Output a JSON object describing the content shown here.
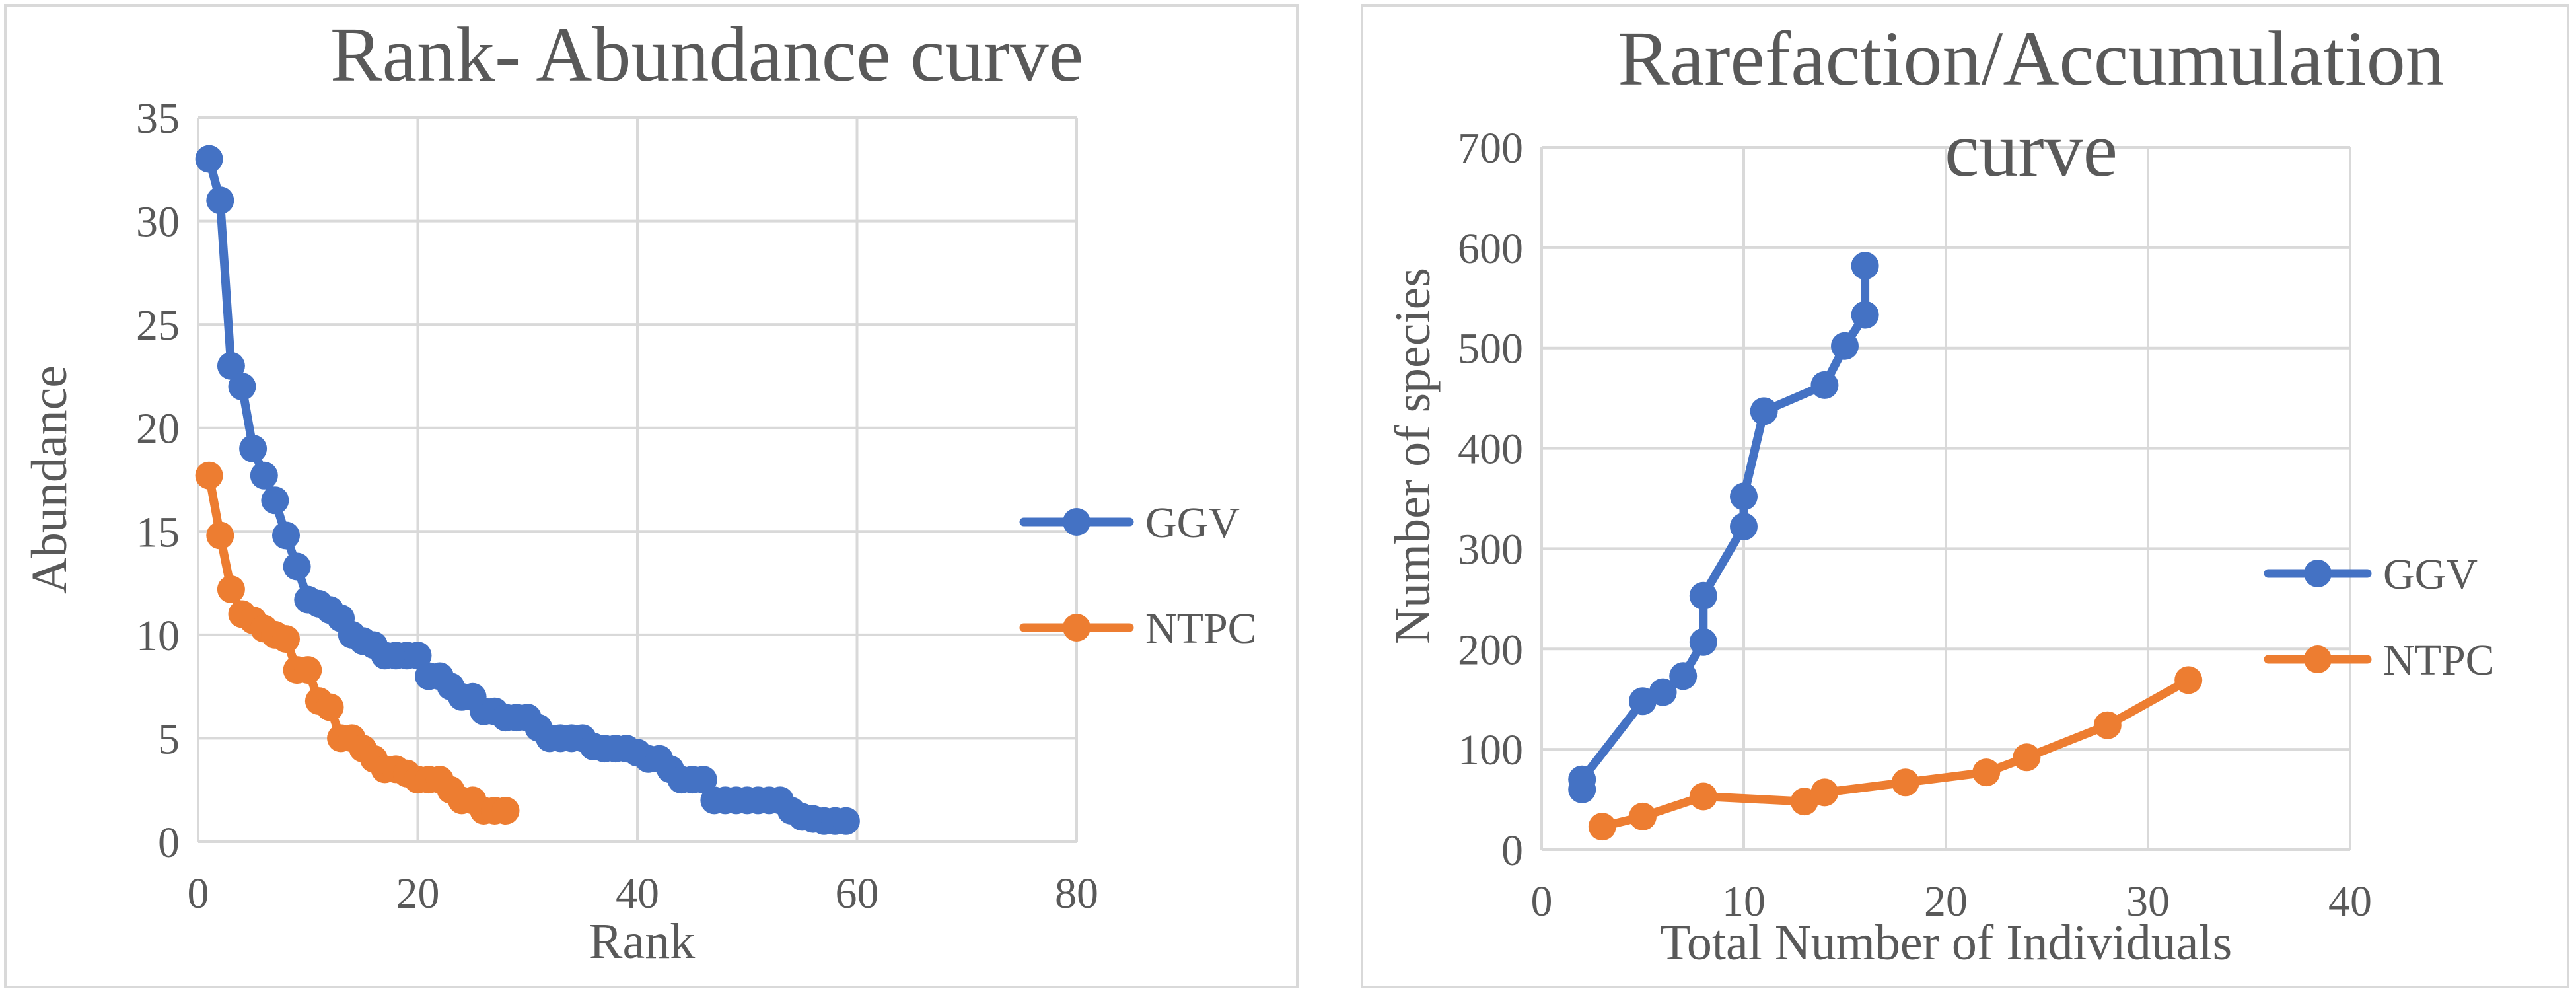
{
  "chart_data": [
    {
      "type": "line",
      "title": "Rank- Abundance curve",
      "xlabel": "Rank",
      "ylabel": "Abundance",
      "xlim": [
        0,
        80
      ],
      "ylim": [
        0,
        35
      ],
      "x_ticks": [
        0,
        20,
        40,
        60,
        80
      ],
      "y_ticks": [
        0,
        5,
        10,
        15,
        20,
        25,
        30,
        35
      ],
      "grid": true,
      "legend_position": "right",
      "series": [
        {
          "name": "GGV",
          "color": "#4472C4",
          "points": [
            [
              1,
              33
            ],
            [
              2,
              31
            ],
            [
              3,
              23
            ],
            [
              4,
              22
            ],
            [
              5,
              19
            ],
            [
              6,
              17.7
            ],
            [
              7,
              16.5
            ],
            [
              8,
              14.8
            ],
            [
              9,
              13.3
            ],
            [
              10,
              11.7
            ],
            [
              11,
              11.5
            ],
            [
              12,
              11.2
            ],
            [
              13,
              10.8
            ],
            [
              14,
              10
            ],
            [
              15,
              9.7
            ],
            [
              16,
              9.5
            ],
            [
              17,
              9
            ],
            [
              18,
              9
            ],
            [
              19,
              9
            ],
            [
              20,
              9
            ],
            [
              21,
              8
            ],
            [
              22,
              8
            ],
            [
              23,
              7.5
            ],
            [
              24,
              7
            ],
            [
              25,
              7
            ],
            [
              26,
              6.3
            ],
            [
              27,
              6.3
            ],
            [
              28,
              6
            ],
            [
              29,
              6
            ],
            [
              30,
              6
            ],
            [
              31,
              5.5
            ],
            [
              32,
              5
            ],
            [
              33,
              5
            ],
            [
              34,
              5
            ],
            [
              35,
              5
            ],
            [
              36,
              4.6
            ],
            [
              37,
              4.5
            ],
            [
              38,
              4.5
            ],
            [
              39,
              4.5
            ],
            [
              40,
              4.3
            ],
            [
              41,
              4
            ],
            [
              42,
              4
            ],
            [
              43,
              3.5
            ],
            [
              44,
              3
            ],
            [
              45,
              3
            ],
            [
              46,
              3
            ],
            [
              47,
              2
            ],
            [
              48,
              2
            ],
            [
              49,
              2
            ],
            [
              50,
              2
            ],
            [
              51,
              2
            ],
            [
              52,
              2
            ],
            [
              53,
              2
            ],
            [
              54,
              1.5
            ],
            [
              55,
              1.2
            ],
            [
              56,
              1.1
            ],
            [
              57,
              1
            ],
            [
              58,
              1
            ],
            [
              59,
              1
            ]
          ]
        },
        {
          "name": "NTPC",
          "color": "#ED7D31",
          "points": [
            [
              1,
              17.7
            ],
            [
              2,
              14.8
            ],
            [
              3,
              12.2
            ],
            [
              4,
              11
            ],
            [
              5,
              10.7
            ],
            [
              6,
              10.3
            ],
            [
              7,
              10
            ],
            [
              8,
              9.8
            ],
            [
              9,
              8.3
            ],
            [
              10,
              8.3
            ],
            [
              11,
              6.8
            ],
            [
              12,
              6.5
            ],
            [
              13,
              5
            ],
            [
              14,
              5
            ],
            [
              15,
              4.5
            ],
            [
              16,
              4
            ],
            [
              17,
              3.5
            ],
            [
              18,
              3.5
            ],
            [
              19,
              3.3
            ],
            [
              20,
              3
            ],
            [
              21,
              3
            ],
            [
              22,
              3
            ],
            [
              23,
              2.5
            ],
            [
              24,
              2
            ],
            [
              25,
              2
            ],
            [
              26,
              1.5
            ],
            [
              27,
              1.5
            ],
            [
              28,
              1.5
            ]
          ]
        }
      ]
    },
    {
      "type": "line",
      "title": "Rarefaction/Accumulation curve",
      "title_lines": [
        "Rarefaction/Accumulation",
        "curve"
      ],
      "xlabel": "Total Number of Individuals",
      "ylabel": "Number of species",
      "xlim": [
        0,
        40
      ],
      "ylim": [
        0,
        700
      ],
      "x_ticks": [
        0,
        10,
        20,
        30,
        40
      ],
      "y_ticks": [
        0,
        100,
        200,
        300,
        400,
        500,
        600,
        700
      ],
      "grid": true,
      "legend_position": "right",
      "series": [
        {
          "name": "GGV",
          "color": "#4472C4",
          "points": [
            [
              2,
              60
            ],
            [
              2,
              70
            ],
            [
              5,
              148
            ],
            [
              6,
              157
            ],
            [
              7,
              173
            ],
            [
              8,
              207
            ],
            [
              8,
              253
            ],
            [
              10,
              322
            ],
            [
              10,
              352
            ],
            [
              11,
              437
            ],
            [
              14,
              463
            ],
            [
              15,
              502
            ],
            [
              16,
              533
            ],
            [
              16,
              582
            ]
          ]
        },
        {
          "name": "NTPC",
          "color": "#ED7D31",
          "points": [
            [
              3,
              23
            ],
            [
              5,
              33
            ],
            [
              8,
              53
            ],
            [
              13,
              48
            ],
            [
              14,
              57
            ],
            [
              18,
              67
            ],
            [
              22,
              77
            ],
            [
              24,
              92
            ],
            [
              28,
              124
            ],
            [
              32,
              169
            ]
          ]
        }
      ]
    }
  ]
}
